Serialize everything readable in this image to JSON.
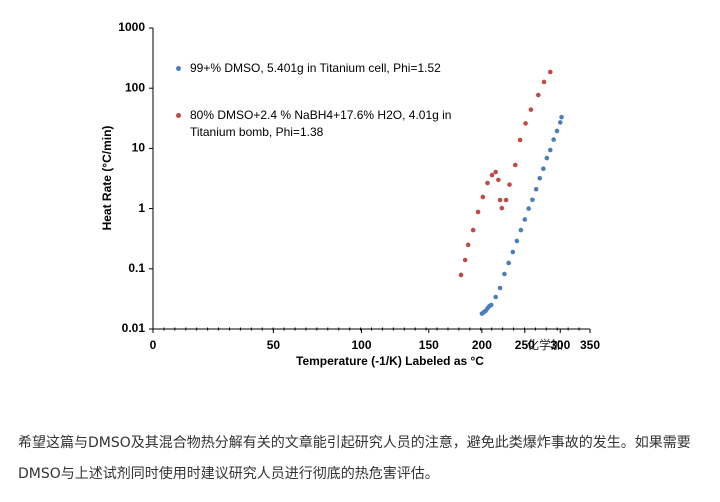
{
  "chart_data": {
    "type": "scatter",
    "x_label": "Temperature (-1/K) Labeled as °C",
    "y_label": "Heat Rate (°C/min)",
    "xscale": "reciprocal-kelvin",
    "xlim": [
      0,
      350
    ],
    "xticks": [
      0,
      50,
      100,
      150,
      200,
      250,
      300,
      350
    ],
    "ylog": true,
    "ylim": [
      0.01,
      1000
    ],
    "yticks": [
      0.01,
      0.1,
      1,
      10,
      100,
      1000
    ],
    "grid": false,
    "series": [
      {
        "name": "99+% DMSO, 5.401g in Titanium cell, Phi=1.52",
        "color": "#4a7ebb",
        "x": [
          200,
          202,
          204,
          206,
          208,
          210,
          215,
          220,
          225,
          230,
          235,
          240,
          245,
          250,
          255,
          260,
          265,
          270,
          275,
          280,
          285,
          290,
          295,
          300,
          302
        ],
        "values": [
          0.018,
          0.019,
          0.02,
          0.022,
          0.024,
          0.025,
          0.034,
          0.048,
          0.082,
          0.125,
          0.19,
          0.29,
          0.44,
          0.66,
          1.0,
          1.4,
          2.1,
          3.2,
          4.6,
          6.9,
          9.4,
          14,
          19.5,
          27,
          33
        ]
      },
      {
        "name": "80% DMSO+2.4 % NaBH4+17.6% H2O, 4.01g in Titanium bomb, Phi=1.38",
        "color": "#be4b48",
        "x": [
          179,
          183,
          186,
          191,
          196,
          201,
          206,
          211,
          215,
          218,
          220,
          222,
          227,
          231,
          238,
          244,
          251,
          258,
          268,
          276,
          285
        ],
        "values": [
          0.079,
          0.14,
          0.25,
          0.44,
          0.88,
          1.56,
          2.66,
          3.6,
          4.05,
          3.0,
          1.39,
          1.02,
          1.39,
          2.5,
          5.3,
          13.8,
          26,
          44,
          77,
          127,
          186
        ]
      }
    ]
  },
  "watermark": "化学加",
  "caption": "希望这篇与DMSO及其混合物热分解有关的文章能引起研究人员的注意，避免此类爆炸事故的发生。如果需要DMSO与上述试剂同时使用时建议研究人员进行彻底的热危害评估。"
}
